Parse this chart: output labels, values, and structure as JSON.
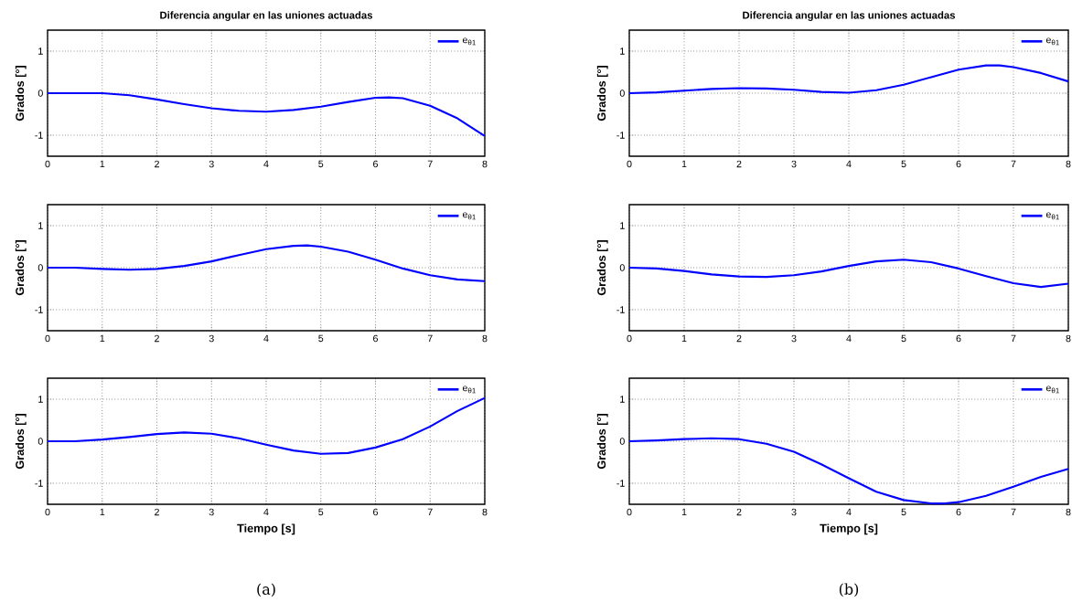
{
  "chart_data": [
    {
      "type": "line",
      "title": "Diferencia angular en las uniones actuadas",
      "ylabel": "Grados [°]",
      "xlim": [
        0,
        8
      ],
      "ylim": [
        -1.5,
        1.5
      ],
      "xticks": [
        0,
        1,
        2,
        3,
        4,
        5,
        6,
        7,
        8
      ],
      "yticks": [
        -1,
        0,
        1
      ],
      "grid": true,
      "legend": "top right",
      "series": [
        {
          "name": "e$_{θ1}$",
          "color": "#0000ff",
          "x": [
            0,
            0.5,
            1,
            1.5,
            2,
            2.5,
            3,
            3.5,
            4,
            4.5,
            5,
            5.5,
            6,
            6.25,
            6.5,
            7,
            7.5,
            8
          ],
          "values": [
            0,
            0,
            0,
            -0.05,
            -0.15,
            -0.26,
            -0.36,
            -0.42,
            -0.44,
            -0.4,
            -0.32,
            -0.21,
            -0.11,
            -0.1,
            -0.12,
            -0.3,
            -0.6,
            -1.02
          ]
        }
      ]
    },
    {
      "type": "line",
      "title": "Diferencia angular en las uniones actuadas",
      "ylabel": "Grados [°]",
      "xlim": [
        0,
        8
      ],
      "ylim": [
        -1.5,
        1.5
      ],
      "xticks": [
        0,
        1,
        2,
        3,
        4,
        5,
        6,
        7,
        8
      ],
      "yticks": [
        -1,
        0,
        1
      ],
      "grid": true,
      "legend": "top right",
      "series": [
        {
          "name": "e$_{θ1}$",
          "color": "#0000ff",
          "x": [
            0,
            0.5,
            1,
            1.5,
            2,
            2.5,
            3,
            3.5,
            4,
            4.5,
            5,
            5.5,
            6,
            6.5,
            6.75,
            7,
            7.5,
            8
          ],
          "values": [
            0,
            0.02,
            0.06,
            0.1,
            0.12,
            0.11,
            0.08,
            0.03,
            0.01,
            0.07,
            0.2,
            0.38,
            0.56,
            0.66,
            0.66,
            0.62,
            0.48,
            0.28
          ]
        }
      ]
    },
    {
      "type": "line",
      "ylabel": "Grados [°]",
      "xlim": [
        0,
        8
      ],
      "ylim": [
        -1.5,
        1.5
      ],
      "xticks": [
        0,
        1,
        2,
        3,
        4,
        5,
        6,
        7,
        8
      ],
      "yticks": [
        -1,
        0,
        1
      ],
      "grid": true,
      "legend": "top right",
      "series": [
        {
          "name": "e$_{θ1}$",
          "color": "#0000ff",
          "x": [
            0,
            0.5,
            1,
            1.5,
            2,
            2.5,
            3,
            3.5,
            4,
            4.5,
            4.75,
            5,
            5.5,
            6,
            6.5,
            7,
            7.5,
            8
          ],
          "values": [
            0,
            0,
            -0.03,
            -0.05,
            -0.03,
            0.04,
            0.15,
            0.3,
            0.44,
            0.52,
            0.53,
            0.5,
            0.38,
            0.19,
            -0.02,
            -0.18,
            -0.28,
            -0.32
          ]
        }
      ]
    },
    {
      "type": "line",
      "ylabel": "Grados [°]",
      "xlim": [
        0,
        8
      ],
      "ylim": [
        -1.5,
        1.5
      ],
      "xticks": [
        0,
        1,
        2,
        3,
        4,
        5,
        6,
        7,
        8
      ],
      "yticks": [
        -1,
        0,
        1
      ],
      "grid": true,
      "legend": "top right",
      "series": [
        {
          "name": "e$_{θ1}$",
          "color": "#0000ff",
          "x": [
            0,
            0.5,
            1,
            1.5,
            2,
            2.5,
            3,
            3.5,
            4,
            4.5,
            5,
            5.5,
            6,
            6.5,
            7,
            7.5,
            8
          ],
          "values": [
            0,
            -0.02,
            -0.08,
            -0.16,
            -0.21,
            -0.22,
            -0.18,
            -0.09,
            0.04,
            0.15,
            0.19,
            0.13,
            -0.02,
            -0.2,
            -0.37,
            -0.46,
            -0.38
          ]
        }
      ]
    },
    {
      "type": "line",
      "xlabel": "Tiempo [s]",
      "ylabel": "Grados [°]",
      "xlim": [
        0,
        8
      ],
      "ylim": [
        -1.5,
        1.5
      ],
      "xticks": [
        0,
        1,
        2,
        3,
        4,
        5,
        6,
        7,
        8
      ],
      "yticks": [
        -1,
        0,
        1
      ],
      "grid": true,
      "legend": "top right",
      "annotations": [
        "(a)"
      ],
      "series": [
        {
          "name": "e$_{θ1}$",
          "color": "#0000ff",
          "x": [
            0,
            0.5,
            1,
            1.5,
            2,
            2.5,
            3,
            3.5,
            4,
            4.5,
            5,
            5.5,
            6,
            6.5,
            7,
            7.5,
            8
          ],
          "values": [
            0,
            0,
            0.04,
            0.1,
            0.17,
            0.21,
            0.18,
            0.07,
            -0.08,
            -0.22,
            -0.3,
            -0.28,
            -0.15,
            0.05,
            0.35,
            0.72,
            1.03
          ]
        }
      ]
    },
    {
      "type": "line",
      "xlabel": "Tiempo [s]",
      "ylabel": "Grados [°]",
      "xlim": [
        0,
        8
      ],
      "ylim": [
        -1.5,
        1.5
      ],
      "xticks": [
        0,
        1,
        2,
        3,
        4,
        5,
        6,
        7,
        8
      ],
      "yticks": [
        -1,
        0,
        1
      ],
      "grid": true,
      "legend": "top right",
      "annotations": [
        "(b)"
      ],
      "series": [
        {
          "name": "e$_{θ1}$",
          "color": "#0000ff",
          "x": [
            0,
            0.5,
            1,
            1.5,
            2,
            2.5,
            3,
            3.5,
            4,
            4.5,
            5,
            5.5,
            5.75,
            6,
            6.5,
            7,
            7.5,
            8
          ],
          "values": [
            0,
            0.02,
            0.05,
            0.07,
            0.05,
            -0.06,
            -0.25,
            -0.55,
            -0.88,
            -1.2,
            -1.4,
            -1.48,
            -1.48,
            -1.45,
            -1.3,
            -1.08,
            -0.85,
            -0.66
          ]
        }
      ]
    }
  ]
}
